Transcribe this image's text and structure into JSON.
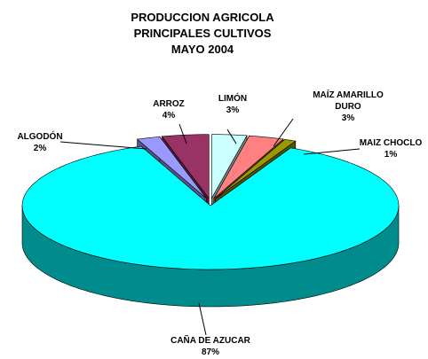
{
  "chart_data": {
    "type": "pie3d",
    "title": [
      "PRODUCCION AGRICOLA",
      "PRINCIPALES CULTIVOS",
      "MAYO 2004"
    ],
    "categories": [
      "LIMÓN",
      "MAÍZ AMARILLO DURO",
      "MAIZ CHOCLO",
      "CAÑA DE AZUCAR",
      "ALGODÓN",
      "ARROZ"
    ],
    "values": [
      3,
      3,
      1,
      87,
      2,
      4
    ],
    "value_labels": [
      "3%",
      "3%",
      "1%",
      "87%",
      "2%",
      "4%"
    ],
    "colors": [
      "#ccffff",
      "#ff8080",
      "#999900",
      "#00ffff",
      "#9999ff",
      "#993366"
    ]
  }
}
